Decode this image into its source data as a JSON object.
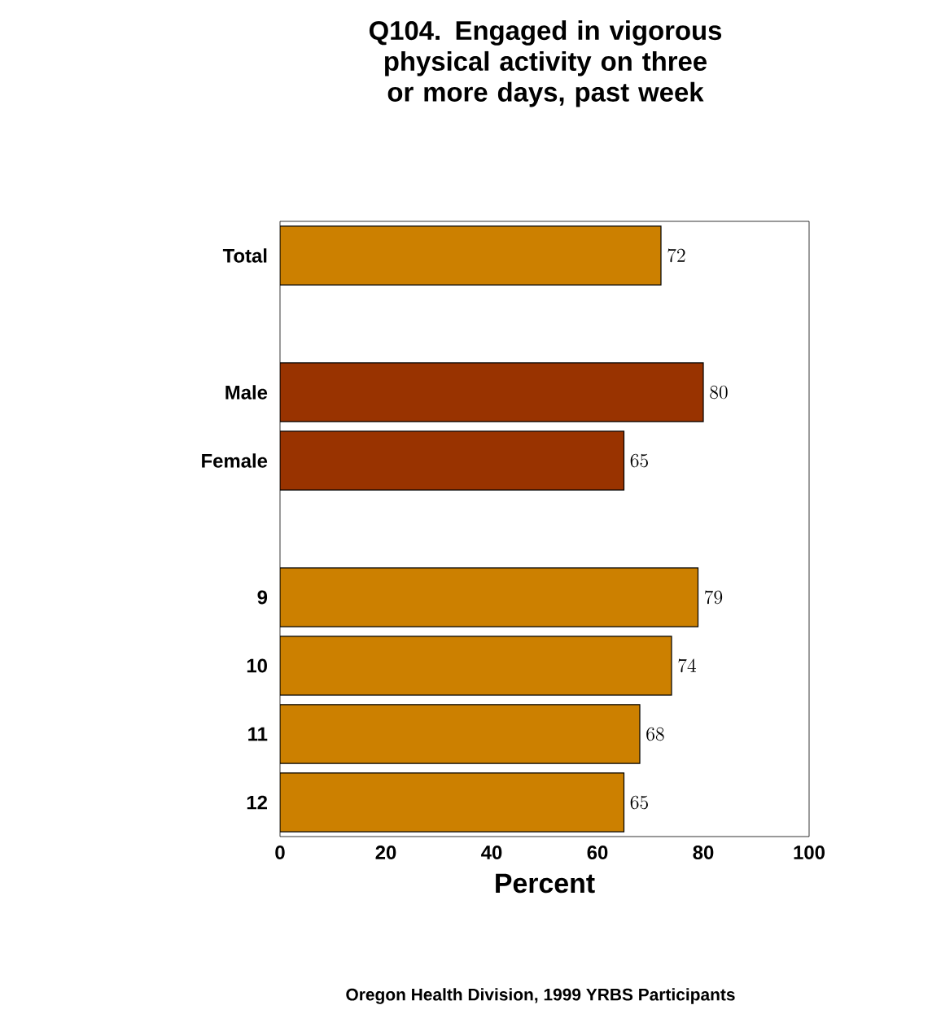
{
  "chart_data": {
    "type": "bar",
    "orientation": "horizontal",
    "title": "Q104.  Engaged in vigorous physical activity on three or more days, past week",
    "categories": [
      "Total",
      null,
      "Male",
      "Female",
      null,
      "9",
      "10",
      "11",
      "12"
    ],
    "values": [
      72,
      null,
      80,
      65,
      null,
      79,
      74,
      68,
      65
    ],
    "colors": [
      "#cc8000",
      "#cc8000",
      "#993300",
      "#993300",
      "#cc8000",
      "#cc8000",
      "#cc8000",
      "#cc8000",
      "#cc8000"
    ],
    "xlim": [
      0,
      100
    ],
    "xticks": [
      0,
      20,
      40,
      60,
      80,
      100
    ],
    "xlabel": "Percent",
    "data_labels": true,
    "annotations": [
      "Oregon Health Division, 1999 YRBS Participants"
    ]
  }
}
